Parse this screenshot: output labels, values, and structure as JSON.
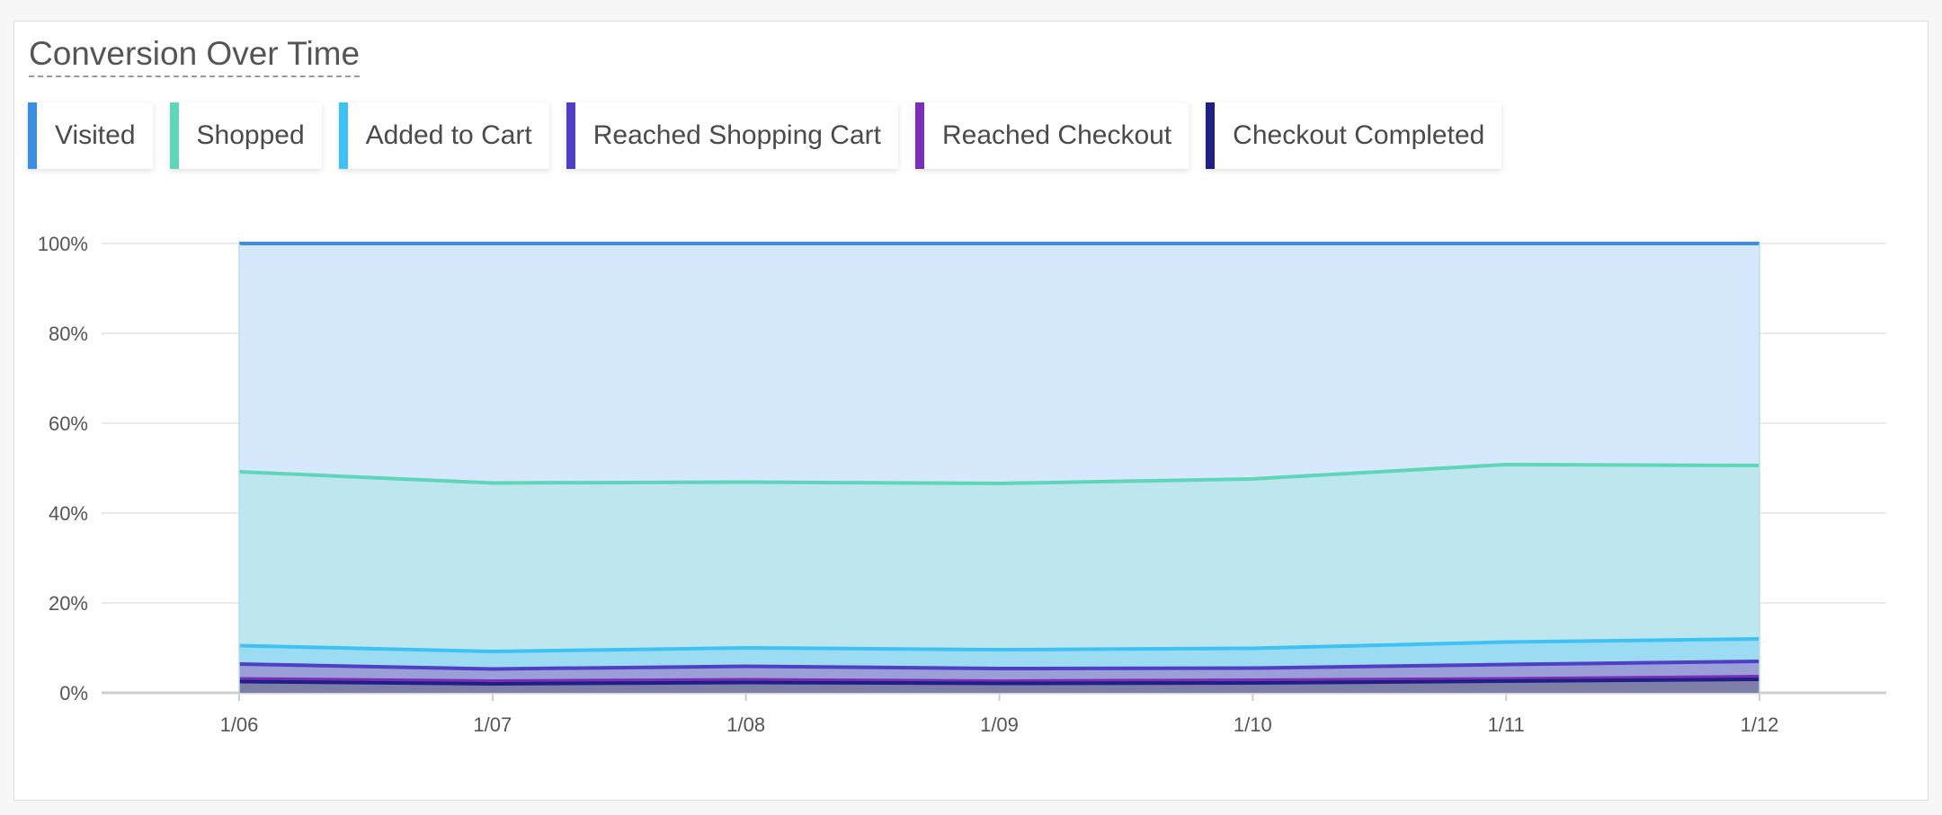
{
  "title": "Conversion Over Time",
  "legend": [
    {
      "label": "Visited",
      "color": "#3a8ee6"
    },
    {
      "label": "Shopped",
      "color": "#5fd6b8"
    },
    {
      "label": "Added to Cart",
      "color": "#3ec2f5"
    },
    {
      "label": "Reached Shopping Cart",
      "color": "#4f3fc4"
    },
    {
      "label": "Reached Checkout",
      "color": "#7a2fb6"
    },
    {
      "label": "Checkout Completed",
      "color": "#1f1f86"
    }
  ],
  "chart_data": {
    "type": "area",
    "categories": [
      "1/06",
      "1/07",
      "1/08",
      "1/09",
      "1/10",
      "1/11",
      "1/12"
    ],
    "y_tick_labels": [
      "0%",
      "20%",
      "40%",
      "60%",
      "80%",
      "100%"
    ],
    "ylim": [
      0,
      100
    ],
    "grid": true,
    "legend_position": "top-left",
    "series": [
      {
        "name": "Visited",
        "color": "#3a8ee6",
        "fill": "#d5e8fc",
        "values": [
          100,
          100,
          100,
          100,
          100,
          100,
          100
        ]
      },
      {
        "name": "Shopped",
        "color": "#5fd6b8",
        "fill": "#bee6ef",
        "values": [
          49.2,
          46.7,
          46.9,
          46.6,
          47.6,
          50.8,
          50.6
        ]
      },
      {
        "name": "Added to Cart",
        "color": "#3ec2f5",
        "fill": "#9bdcf3",
        "values": [
          10.5,
          9.2,
          10.0,
          9.6,
          9.9,
          11.3,
          12.0
        ]
      },
      {
        "name": "Reached Shopping Cart",
        "color": "#4f3fc4",
        "fill": "#9b9fd8",
        "values": [
          6.4,
          5.3,
          5.9,
          5.4,
          5.5,
          6.3,
          7.0
        ]
      },
      {
        "name": "Reached Checkout",
        "color": "#7a2fb6",
        "fill": "#8d85c4",
        "values": [
          3.1,
          2.6,
          2.9,
          2.6,
          2.8,
          3.1,
          3.6
        ]
      },
      {
        "name": "Checkout Completed",
        "color": "#1f1f86",
        "fill": "#7d7fa8",
        "values": [
          2.5,
          2.0,
          2.3,
          2.1,
          2.2,
          2.6,
          3.0
        ]
      }
    ]
  }
}
